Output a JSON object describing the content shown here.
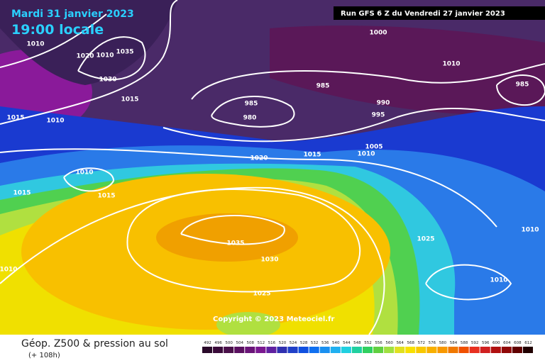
{
  "header": {
    "date": "Mardi 31 janvier 2023",
    "time": "19:00 locale",
    "run": "Run GFS 6 Z du Vendredi 27 janvier 2023"
  },
  "isobar_labels": [
    "1010",
    "1020",
    "1010",
    "1035",
    "1030",
    "1015",
    "1015",
    "1010",
    "1000",
    "1010",
    "985",
    "985",
    "980",
    "990",
    "995",
    "985",
    "1005",
    "1010",
    "1015",
    "1020",
    "1010",
    "1015",
    "1015",
    "1035",
    "1030",
    "1025",
    "1010",
    "1010",
    "1010",
    "1025"
  ],
  "copyright": "Copyright © 2023 Meteociel.fr",
  "footer": {
    "title": "Géop. Z500 & pression au sol",
    "subtitle": "(+ 108h)"
  },
  "legend": {
    "labels": [
      "492",
      "496",
      "500",
      "504",
      "508",
      "512",
      "516",
      "520",
      "524",
      "528",
      "532",
      "536",
      "540",
      "544",
      "548",
      "552",
      "556",
      "560",
      "564",
      "568",
      "572",
      "576",
      "580",
      "584",
      "588",
      "592",
      "596",
      "600",
      "604",
      "608",
      "612"
    ],
    "colors": [
      "#2a0a2a",
      "#3a0a3a",
      "#4a104a",
      "#5a1060",
      "#6a1478",
      "#7a1890",
      "#6020a0",
      "#3030b0",
      "#2040c8",
      "#1050e0",
      "#1070f0",
      "#1a90f0",
      "#20b0f0",
      "#20d0e0",
      "#20d0a0",
      "#30d060",
      "#60d040",
      "#a0e040",
      "#e0e020",
      "#f8e000",
      "#f8c800",
      "#f8b000",
      "#f89800",
      "#f07800",
      "#f05000",
      "#e83020",
      "#d02020",
      "#b01010",
      "#900808",
      "#600000",
      "#200000"
    ]
  }
}
